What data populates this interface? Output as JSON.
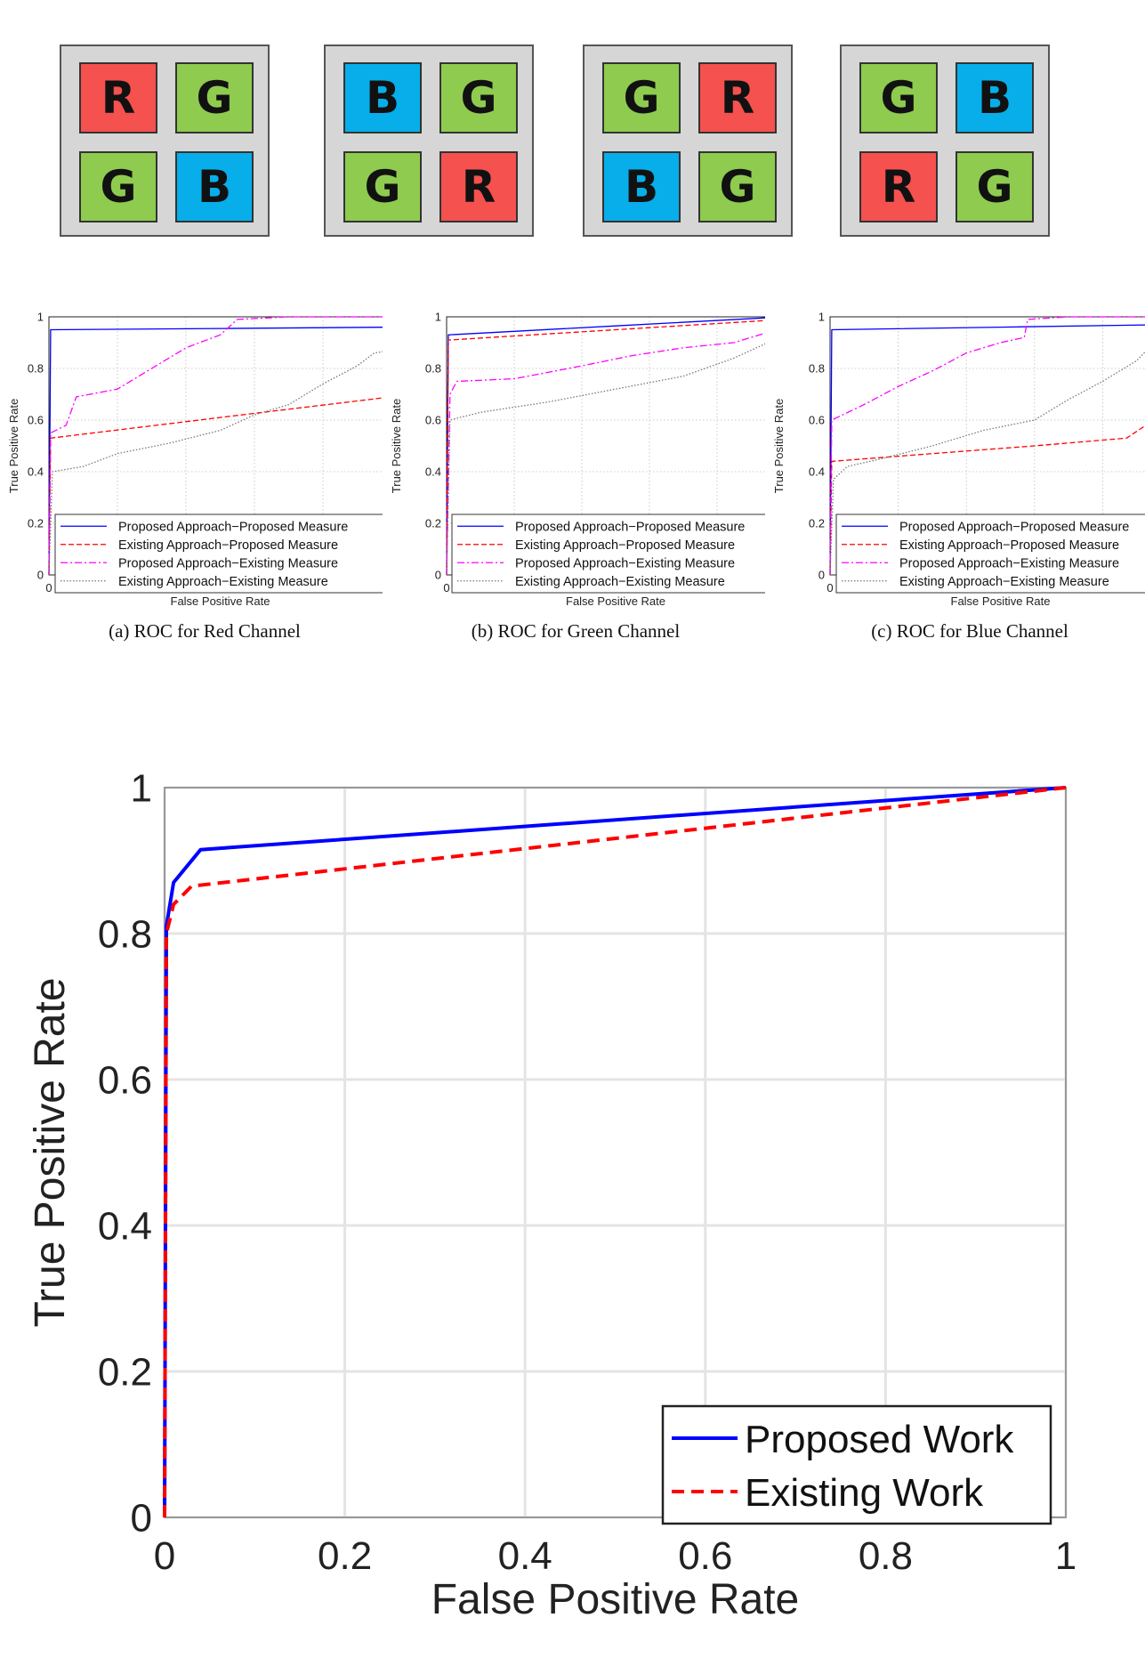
{
  "bayer_patterns": [
    {
      "cells": [
        [
          "R",
          "G"
        ],
        [
          "G",
          "B"
        ]
      ]
    },
    {
      "cells": [
        [
          "B",
          "G"
        ],
        [
          "G",
          "R"
        ]
      ]
    },
    {
      "cells": [
        [
          "G",
          "R"
        ],
        [
          "B",
          "G"
        ]
      ]
    },
    {
      "cells": [
        [
          "G",
          "B"
        ],
        [
          "R",
          "G"
        ]
      ]
    }
  ],
  "colors": {
    "R": "#f4514f",
    "G": "#8ecb4f",
    "B": "#07aeea"
  },
  "captions": [
    "(a) ROC for Red Channel",
    "(b) ROC for Green Channel",
    "(c) ROC for Blue Channel"
  ],
  "chart_data": [
    {
      "type": "line",
      "title": "",
      "xlabel": "False Positive Rate",
      "ylabel": "True Positive Rate",
      "xlim": [
        0,
        1
      ],
      "ylim": [
        0,
        1
      ],
      "grid": true,
      "legend": "bottom",
      "xticks": [
        "0",
        "0.2",
        "0.4",
        "0.6",
        "0.8",
        "1"
      ],
      "yticks": [
        "0",
        "0.2",
        "0.4",
        "0.6",
        "0.8",
        "1"
      ],
      "series": [
        {
          "name": "Proposed Approach−Proposed Measure",
          "color": "#0000ff",
          "dash": "solid",
          "x": [
            0,
            0.005,
            0.5,
            1
          ],
          "y": [
            0,
            0.95,
            0.955,
            0.96
          ]
        },
        {
          "name": "Existing Approach−Proposed Measure",
          "color": "#ff0000",
          "dash": "dashed",
          "x": [
            0,
            0.005,
            0.5,
            1,
            1
          ],
          "y": [
            0,
            0.53,
            0.61,
            0.69,
            1
          ]
        },
        {
          "name": "Proposed Approach−Existing Measure",
          "color": "#ff00ff",
          "dash": "dashdot",
          "x": [
            0,
            0.005,
            0.05,
            0.08,
            0.2,
            0.3,
            0.4,
            0.5,
            0.55,
            0.7,
            0.9,
            1
          ],
          "y": [
            0,
            0.55,
            0.58,
            0.69,
            0.72,
            0.8,
            0.88,
            0.93,
            0.99,
            1,
            1,
            1
          ]
        },
        {
          "name": "Existing Approach−Existing Measure",
          "color": "#777777",
          "dash": "dotted",
          "x": [
            0,
            0.01,
            0.1,
            0.2,
            0.35,
            0.5,
            0.6,
            0.7,
            0.8,
            0.9,
            0.95,
            1
          ],
          "y": [
            0,
            0.4,
            0.42,
            0.47,
            0.51,
            0.56,
            0.62,
            0.66,
            0.74,
            0.81,
            0.86,
            0.87
          ]
        }
      ]
    },
    {
      "type": "line",
      "title": "",
      "xlabel": "False Positive Rate",
      "ylabel": "True Positive Rate",
      "xlim": [
        0,
        1
      ],
      "ylim": [
        0,
        1
      ],
      "grid": true,
      "legend": "bottom",
      "xticks": [
        "0",
        "0.2",
        "0.4",
        "0.6",
        "0.8",
        "1"
      ],
      "yticks": [
        "0",
        "0.2",
        "0.4",
        "0.6",
        "0.8",
        "1"
      ],
      "series": [
        {
          "name": "Proposed Approach−Proposed Measure",
          "color": "#0000ff",
          "dash": "solid",
          "x": [
            0,
            0.005,
            0.5,
            1
          ],
          "y": [
            0,
            0.93,
            0.965,
            1
          ]
        },
        {
          "name": "Existing Approach−Proposed Measure",
          "color": "#ff0000",
          "dash": "dashed",
          "x": [
            0,
            0.005,
            0.5,
            1
          ],
          "y": [
            0,
            0.91,
            0.95,
            0.99
          ]
        },
        {
          "name": "Proposed Approach−Existing Measure",
          "color": "#ff00ff",
          "dash": "dashdot",
          "x": [
            0,
            0.01,
            0.03,
            0.2,
            0.4,
            0.55,
            0.7,
            0.85,
            0.95,
            1
          ],
          "y": [
            0,
            0.7,
            0.75,
            0.76,
            0.81,
            0.85,
            0.88,
            0.9,
            0.94,
            1
          ]
        },
        {
          "name": "Existing Approach−Existing Measure",
          "color": "#777777",
          "dash": "dotted",
          "x": [
            0,
            0.01,
            0.1,
            0.3,
            0.5,
            0.7,
            0.85,
            0.95,
            1
          ],
          "y": [
            0,
            0.6,
            0.63,
            0.67,
            0.72,
            0.77,
            0.84,
            0.9,
            0.98
          ]
        }
      ]
    },
    {
      "type": "line",
      "title": "",
      "xlabel": "False Positive Rate",
      "ylabel": "True Positive Rate",
      "xlim": [
        0,
        1
      ],
      "ylim": [
        0,
        1
      ],
      "grid": true,
      "legend": "bottom",
      "xticks": [
        "0",
        "0.2",
        "0.4",
        "0.6",
        "0.8",
        "1"
      ],
      "yticks": [
        "0",
        "0.2",
        "0.4",
        "0.6",
        "0.8",
        "1"
      ],
      "series": [
        {
          "name": "Proposed Approach−Proposed Measure",
          "color": "#0000ff",
          "dash": "solid",
          "x": [
            0,
            0.005,
            0.5,
            1
          ],
          "y": [
            0,
            0.95,
            0.96,
            0.97
          ]
        },
        {
          "name": "Existing Approach−Proposed Measure",
          "color": "#ff0000",
          "dash": "dashed",
          "x": [
            0,
            0.005,
            0.3,
            0.6,
            0.87,
            0.95,
            1,
            1
          ],
          "y": [
            0,
            0.44,
            0.47,
            0.5,
            0.53,
            0.6,
            0.69,
            1
          ]
        },
        {
          "name": "Proposed Approach−Existing Measure",
          "color": "#ff00ff",
          "dash": "dashdot",
          "x": [
            0,
            0.005,
            0.1,
            0.2,
            0.3,
            0.4,
            0.5,
            0.57,
            0.58,
            0.7,
            1
          ],
          "y": [
            0,
            0.6,
            0.66,
            0.73,
            0.79,
            0.86,
            0.9,
            0.92,
            0.99,
            1,
            1
          ]
        },
        {
          "name": "Existing Approach−Existing Measure",
          "color": "#777777",
          "dash": "dotted",
          "x": [
            0,
            0.01,
            0.05,
            0.15,
            0.3,
            0.45,
            0.6,
            0.7,
            0.8,
            0.9,
            0.95,
            1
          ],
          "y": [
            0,
            0.37,
            0.42,
            0.45,
            0.5,
            0.56,
            0.6,
            0.68,
            0.75,
            0.83,
            0.9,
            0.94
          ]
        }
      ]
    },
    {
      "type": "line",
      "title": "",
      "xlabel": "False Positive Rate",
      "ylabel": "True Positive Rate",
      "xlim": [
        0,
        1
      ],
      "ylim": [
        0,
        1
      ],
      "grid": true,
      "legend": "bottom-right",
      "xticks": [
        "0",
        "0.2",
        "0.4",
        "0.6",
        "0.8",
        "1"
      ],
      "yticks": [
        "0",
        "0.2",
        "0.4",
        "0.6",
        "0.8",
        "1"
      ],
      "series": [
        {
          "name": "Proposed Work",
          "color": "#0000ff",
          "dash": "solid",
          "x": [
            0,
            0.002,
            0.01,
            0.04,
            1
          ],
          "y": [
            0,
            0.81,
            0.87,
            0.915,
            1
          ]
        },
        {
          "name": "Existing Work",
          "color": "#ff0000",
          "dash": "dashed",
          "x": [
            0,
            0.002,
            0.01,
            0.03,
            1
          ],
          "y": [
            0,
            0.8,
            0.84,
            0.865,
            1
          ]
        }
      ]
    }
  ]
}
